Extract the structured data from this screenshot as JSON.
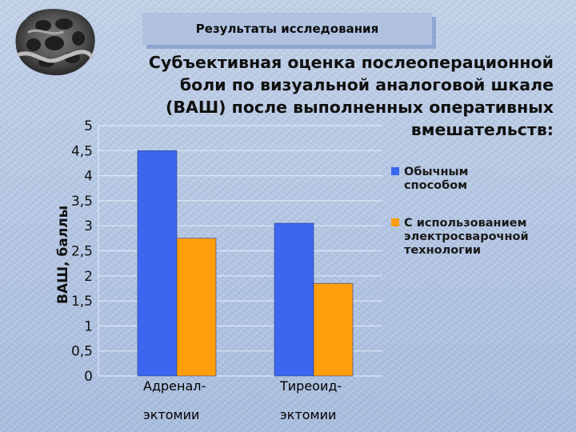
{
  "banner": {
    "text": "Результаты исследования"
  },
  "chart_data": {
    "type": "bar",
    "title": "Субъективная оценка послеоперационной\nболи по визуальной аналоговой шкале\n(ВАШ) после  выполненных оперативных\nвмешательств:",
    "ylabel": "ВАШ, баллы",
    "xlabel": "",
    "ylim": [
      0,
      5
    ],
    "yticks": [
      "0",
      "0,5",
      "1",
      "1,5",
      "2",
      "2,5",
      "3",
      "3,5",
      "4",
      "4,5",
      "5"
    ],
    "categories": [
      [
        "Адренал-",
        "эктомии"
      ],
      [
        "Тиреоид-",
        "эктомии"
      ]
    ],
    "series": [
      {
        "name": "Обычным способом",
        "legend_lines": [
          "Обычным",
          "способом"
        ],
        "color": "#3b67f0",
        "values": [
          4.5,
          3.05
        ]
      },
      {
        "name": "С использованием электросварочной технологии",
        "legend_lines": [
          "С использованием",
          "электросварочной",
          "технологии"
        ],
        "color": "#ff9d0a",
        "values": [
          2.75,
          1.85
        ]
      }
    ],
    "grid": true,
    "legend_position": "right"
  }
}
